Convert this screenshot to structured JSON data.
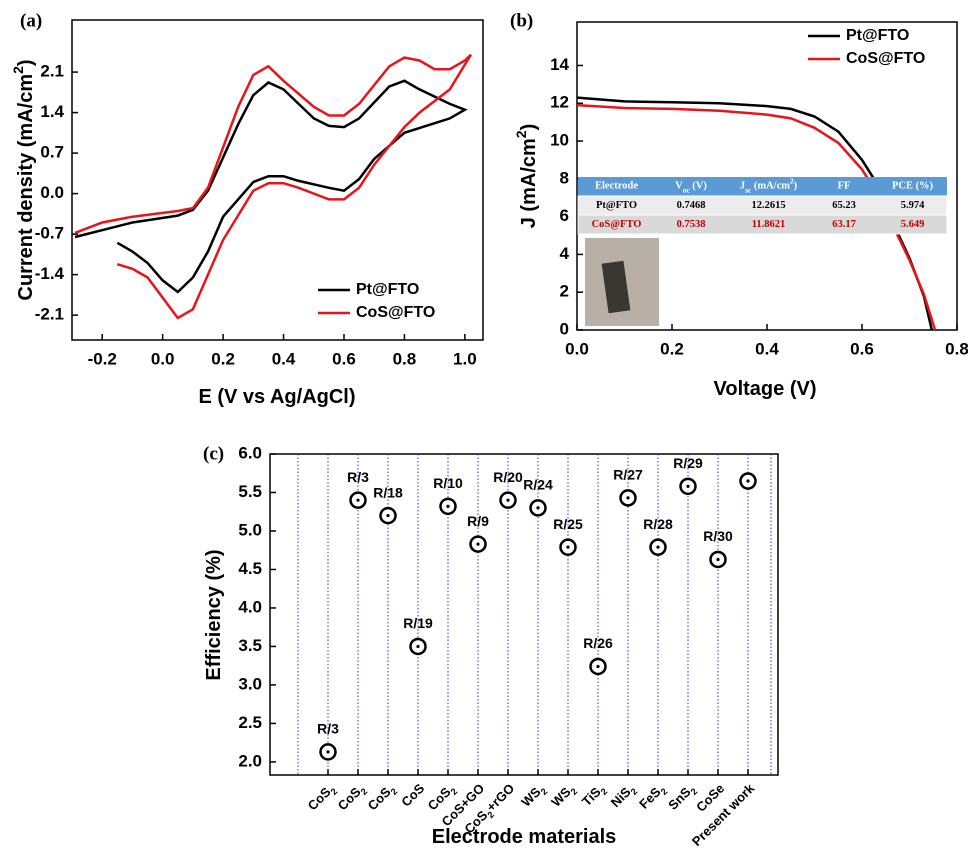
{
  "chart_data": [
    {
      "type": "line",
      "panel": "(a)",
      "xlabel": [
        {
          "t": "E (V vs Ag/AgCl)"
        }
      ],
      "ylabel": [
        {
          "t": "Current density (mA/cm"
        },
        {
          "t": "2",
          "sup": true
        },
        {
          "t": ")"
        }
      ],
      "xlim": [
        -0.3,
        1.06
      ],
      "ylim": [
        -2.53,
        3.0
      ],
      "xticks": [
        -0.2,
        {
          "value": 0,
          "label": "0.0"
        },
        0.2,
        0.4,
        0.6,
        0.8,
        {
          "value": 1,
          "label": "1.0"
        }
      ],
      "yticks": [
        -2.1,
        -1.4,
        -0.7,
        {
          "value": 0,
          "label": "0.0"
        },
        0.7,
        1.4,
        2.1
      ],
      "legend": "lower right",
      "series": [
        {
          "name": "Pt@FTO",
          "color": "#000000",
          "x": [
            -0.29,
            -0.1,
            0.05,
            0.1,
            0.15,
            0.25,
            0.3,
            0.35,
            0.4,
            0.5,
            0.55,
            0.6,
            0.65,
            0.75,
            0.8,
            0.85,
            0.95,
            1.0,
            0.95,
            0.8,
            0.7,
            0.65,
            0.6,
            0.55,
            0.45,
            0.4,
            0.35,
            0.3,
            0.2,
            0.15,
            0.1,
            0.05,
            0.0,
            -0.05,
            -0.1,
            -0.15
          ],
          "values": [
            -0.75,
            -0.5,
            -0.38,
            -0.28,
            0.05,
            1.2,
            1.7,
            1.92,
            1.8,
            1.3,
            1.17,
            1.15,
            1.3,
            1.85,
            1.95,
            1.8,
            1.55,
            1.45,
            1.3,
            1.05,
            0.6,
            0.25,
            0.05,
            0.1,
            0.22,
            0.3,
            0.3,
            0.2,
            -0.4,
            -1.0,
            -1.45,
            -1.7,
            -1.5,
            -1.2,
            -1.0,
            -0.85
          ]
        },
        {
          "name": "CoS@FTO",
          "color": "#e8141b",
          "x": [
            -0.29,
            -0.2,
            -0.1,
            0.05,
            0.1,
            0.15,
            0.25,
            0.3,
            0.35,
            0.4,
            0.5,
            0.55,
            0.6,
            0.65,
            0.75,
            0.8,
            0.85,
            0.9,
            0.95,
            1.0,
            1.02,
            0.95,
            0.85,
            0.8,
            0.7,
            0.65,
            0.6,
            0.55,
            0.45,
            0.4,
            0.35,
            0.3,
            0.2,
            0.15,
            0.1,
            0.05,
            0.0,
            -0.05,
            -0.1,
            -0.15
          ],
          "values": [
            -0.68,
            -0.5,
            -0.4,
            -0.3,
            -0.25,
            0.1,
            1.5,
            2.05,
            2.2,
            1.95,
            1.5,
            1.35,
            1.35,
            1.55,
            2.2,
            2.35,
            2.3,
            2.15,
            2.15,
            2.3,
            2.4,
            1.8,
            1.4,
            1.15,
            0.5,
            0.1,
            -0.1,
            -0.1,
            0.1,
            0.18,
            0.18,
            0.05,
            -0.8,
            -1.4,
            -2.0,
            -2.15,
            -1.8,
            -1.45,
            -1.3,
            -1.22
          ]
        }
      ]
    },
    {
      "type": "line",
      "panel": "(b)",
      "xlabel": [
        {
          "t": "Voltage (V)"
        }
      ],
      "ylabel": [
        {
          "t": "J (mA/cm"
        },
        {
          "t": "2",
          "sup": true
        },
        {
          "t": ")"
        }
      ],
      "xlim": [
        0,
        0.8
      ],
      "ylim": [
        0,
        16.3
      ],
      "xticks": [
        {
          "value": 0,
          "label": "0.0"
        },
        0.2,
        0.4,
        0.6,
        0.8
      ],
      "yticks": [
        0,
        2,
        4,
        6,
        8,
        10,
        12,
        14
      ],
      "legend": "upper right",
      "series": [
        {
          "name": "Pt@FTO",
          "color": "#000000",
          "x": [
            0,
            0.1,
            0.2,
            0.3,
            0.4,
            0.45,
            0.5,
            0.55,
            0.6,
            0.63,
            0.65,
            0.7,
            0.73,
            0.747
          ],
          "values": [
            12.3,
            12.1,
            12.05,
            12.0,
            11.85,
            11.7,
            11.3,
            10.5,
            9.0,
            7.8,
            6.5,
            3.8,
            1.8,
            0
          ]
        },
        {
          "name": "CoS@FTO",
          "color": "#e8141b",
          "x": [
            0,
            0.1,
            0.2,
            0.3,
            0.4,
            0.45,
            0.5,
            0.55,
            0.6,
            0.63,
            0.65,
            0.7,
            0.73,
            0.754
          ],
          "values": [
            11.9,
            11.75,
            11.7,
            11.6,
            11.4,
            11.2,
            10.7,
            9.9,
            8.5,
            7.3,
            6.3,
            3.7,
            1.9,
            0
          ]
        }
      ],
      "inset_table": {
        "header": [
          [
            {
              "t": "Electrode"
            }
          ],
          [
            {
              "t": "V"
            },
            {
              "t": "oc",
              "sub": true
            },
            {
              "t": " (V)"
            }
          ],
          [
            {
              "t": "J"
            },
            {
              "t": "sc",
              "sub": true
            },
            {
              "t": " (mA/cm"
            },
            {
              "t": "2",
              "sup": true
            },
            {
              "t": ")"
            }
          ],
          [
            {
              "t": "FF"
            }
          ],
          [
            {
              "t": "PCE (%)"
            }
          ]
        ],
        "rows": [
          {
            "color": "#000000",
            "cells": [
              "Pt@FTO",
              0.7468,
              12.2615,
              65.23,
              5.974
            ]
          },
          {
            "color": "#c00000",
            "cells": [
              "CoS@FTO",
              0.7538,
              11.8621,
              63.17,
              5.649
            ]
          }
        ]
      }
    },
    {
      "type": "scatter",
      "panel": "(c)",
      "xlabel": [
        {
          "t": "Electrode materials"
        }
      ],
      "ylabel": [
        {
          "t": "Efficiency (%)"
        }
      ],
      "ylim": [
        1.83,
        6.0
      ],
      "yticks": [
        {
          "value": 2,
          "label": "2.0"
        },
        2.5,
        {
          "value": 3,
          "label": "3.0"
        },
        3.5,
        {
          "value": 4,
          "label": "4.0"
        },
        4.5,
        {
          "value": 5,
          "label": "5.0"
        },
        5.5,
        {
          "value": 6,
          "label": "6.0"
        }
      ],
      "categories": [
        [
          {
            "t": "CoS"
          },
          {
            "t": "2",
            "sub": true
          }
        ],
        [
          {
            "t": "CoS"
          },
          {
            "t": "2",
            "sub": true
          }
        ],
        [
          {
            "t": "CoS"
          },
          {
            "t": "2",
            "sub": true
          }
        ],
        [
          {
            "t": "CoS"
          }
        ],
        [
          {
            "t": "CoS"
          },
          {
            "t": "2",
            "sub": true
          }
        ],
        [
          {
            "t": "CoS+GO"
          }
        ],
        [
          {
            "t": "CoS"
          },
          {
            "t": "2",
            "sub": true
          },
          {
            "t": "+rGO"
          }
        ],
        [
          {
            "t": "WS"
          },
          {
            "t": "2",
            "sub": true
          }
        ],
        [
          {
            "t": "WS"
          },
          {
            "t": "2",
            "sub": true
          }
        ],
        [
          {
            "t": "TiS"
          },
          {
            "t": "2",
            "sub": true
          }
        ],
        [
          {
            "t": "NiS"
          },
          {
            "t": "2",
            "sub": true
          }
        ],
        [
          {
            "t": "FeS"
          },
          {
            "t": "2",
            "sub": true
          }
        ],
        [
          {
            "t": "SnS"
          },
          {
            "t": "2",
            "sub": true
          }
        ],
        [
          {
            "t": "CoSe"
          }
        ],
        [
          {
            "t": "Present work"
          }
        ]
      ],
      "values": [
        2.13,
        5.4,
        5.2,
        3.5,
        5.32,
        4.83,
        5.4,
        5.3,
        4.79,
        3.24,
        5.43,
        4.79,
        5.58,
        4.63,
        5.649
      ],
      "annotations": [
        "R/3",
        "R/3",
        "R/18",
        "R/19",
        "R/10",
        "R/9",
        "R/20",
        "R/24",
        "R/25",
        "R/26",
        "R/27",
        "R/28",
        "R/29",
        "R/30",
        null
      ],
      "color": "#000000",
      "grid_color": "#3333cc"
    }
  ]
}
